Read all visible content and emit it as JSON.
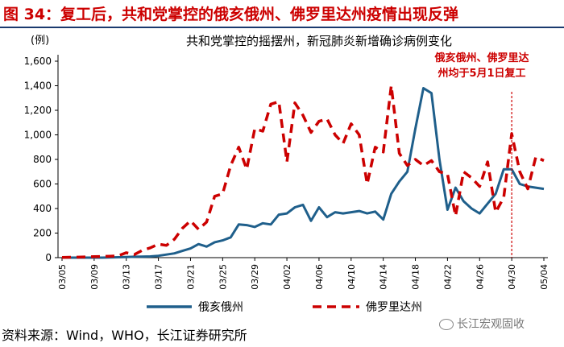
{
  "figure_title": "图 34：复工后，共和党掌控的俄亥俄州、佛罗里达州疫情出现反弹",
  "source": "资料来源：Wind，WHO，长江证券研究所",
  "watermark": "长江宏观固收",
  "colors": {
    "ohio": "#1f5f8b",
    "florida": "#cc0000",
    "title": "#cc0000",
    "rule": "#1a3a6e"
  },
  "chart_data": {
    "type": "line",
    "title": "共和党掌控的摇摆州，新冠肺炎新增确诊病例变化",
    "ylabel": "(例)",
    "ylim": [
      0,
      1600
    ],
    "yticks": [
      0,
      200,
      400,
      600,
      800,
      1000,
      1200,
      1400,
      1600
    ],
    "ytick_labels": [
      "0",
      "200",
      "400",
      "600",
      "800",
      "1,000",
      "1,200",
      "1,400",
      "1,600"
    ],
    "x": [
      "03/05",
      "03/06",
      "03/07",
      "03/08",
      "03/09",
      "03/10",
      "03/11",
      "03/12",
      "03/13",
      "03/14",
      "03/15",
      "03/16",
      "03/17",
      "03/18",
      "03/19",
      "03/20",
      "03/21",
      "03/22",
      "03/23",
      "03/24",
      "03/25",
      "03/26",
      "03/27",
      "03/28",
      "03/29",
      "03/30",
      "03/31",
      "04/01",
      "04/02",
      "04/03",
      "04/04",
      "04/05",
      "04/06",
      "04/07",
      "04/08",
      "04/09",
      "04/10",
      "04/11",
      "04/12",
      "04/13",
      "04/14",
      "04/15",
      "04/16",
      "04/17",
      "04/18",
      "04/19",
      "04/20",
      "04/21",
      "04/22",
      "04/23",
      "04/24",
      "04/25",
      "04/26",
      "04/27",
      "04/28",
      "04/29",
      "04/30",
      "05/01",
      "05/02",
      "05/03",
      "05/04"
    ],
    "xtick_labels": [
      "03/05",
      "03/09",
      "03/13",
      "03/17",
      "03/21",
      "03/25",
      "03/29",
      "04/02",
      "04/06",
      "04/10",
      "04/14",
      "04/18",
      "04/22",
      "04/26",
      "04/30",
      "05/04"
    ],
    "series": [
      {
        "name": "俄亥俄州",
        "style": "solid",
        "values": [
          0,
          0,
          0,
          0,
          0,
          0,
          2,
          3,
          5,
          7,
          8,
          10,
          15,
          25,
          35,
          55,
          75,
          110,
          90,
          125,
          140,
          165,
          270,
          265,
          250,
          280,
          270,
          350,
          360,
          410,
          430,
          300,
          410,
          330,
          370,
          360,
          370,
          380,
          360,
          375,
          310,
          520,
          620,
          700,
          1050,
          1380,
          1340,
          800,
          390,
          570,
          460,
          400,
          360,
          440,
          520,
          720,
          720,
          600,
          580,
          570,
          560
        ]
      },
      {
        "name": "佛罗里达州",
        "style": "dashed",
        "values": [
          2,
          3,
          4,
          6,
          8,
          10,
          12,
          15,
          40,
          25,
          60,
          80,
          110,
          100,
          150,
          240,
          300,
          230,
          290,
          500,
          520,
          750,
          900,
          720,
          1050,
          1030,
          1250,
          1270,
          780,
          1260,
          1160,
          1020,
          1110,
          1130,
          1000,
          930,
          1090,
          1000,
          600,
          900,
          860,
          1400,
          850,
          750,
          800,
          750,
          790,
          700,
          680,
          340,
          700,
          650,
          580,
          780,
          370,
          490,
          1010,
          700,
          560,
          820,
          790
        ]
      }
    ],
    "legend": [
      "俄亥俄州",
      "佛罗里达州"
    ],
    "legend_position": "bottom",
    "annotation": {
      "lines": [
        "俄亥俄州、佛罗里达",
        "州均于5月1日复工"
      ],
      "at_x": "04/30"
    }
  }
}
